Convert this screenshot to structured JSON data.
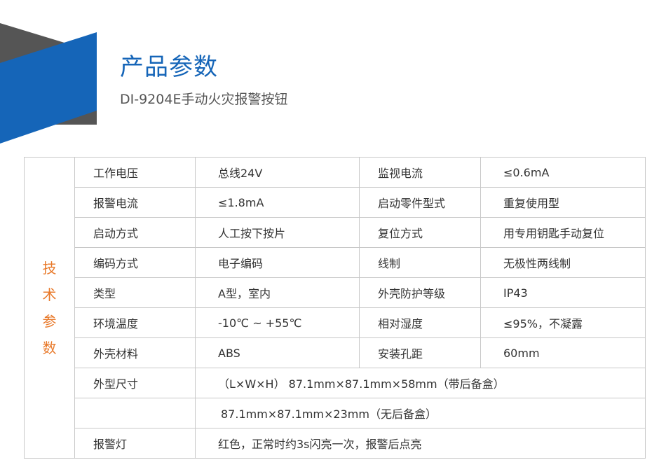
{
  "header": {
    "title": "产品参数",
    "subtitle": "DI-9204E手动火灾报警按钮",
    "accent_color": "#1565b8",
    "shape_gray": "#555555"
  },
  "table": {
    "section_label": [
      "技",
      "术",
      "参",
      "数"
    ],
    "section_color": "#e8792a",
    "rows": [
      [
        "工作电压",
        "总线24V",
        "监视电流",
        "≤0.6mA"
      ],
      [
        "报警电流",
        "≤1.8mA",
        "启动零件型式",
        "重复使用型"
      ],
      [
        "启动方式",
        "人工按下按片",
        "复位方式",
        "用专用钥匙手动复位"
      ],
      [
        "编码方式",
        "电子编码",
        "线制",
        "无极性两线制"
      ],
      [
        "类型",
        "A型，室内",
        "外壳防护等级",
        "IP43"
      ],
      [
        "环境温度",
        "-10℃ ~ +55℃",
        "相对湿度",
        "≤95%，不凝露"
      ],
      [
        "外壳材料",
        "ABS",
        "安装孔距",
        "60mm"
      ]
    ],
    "size_label": "外型尺寸",
    "size_value_1": "（L×W×H） 87.1mm×87.1mm×58mm（带后备盒）",
    "size_value_2": "87.1mm×87.1mm×23mm（无后备盒）",
    "alarm_light_label": "报警灯",
    "alarm_light_value": "红色，正常时约3s闪亮一次，报警后点亮"
  }
}
